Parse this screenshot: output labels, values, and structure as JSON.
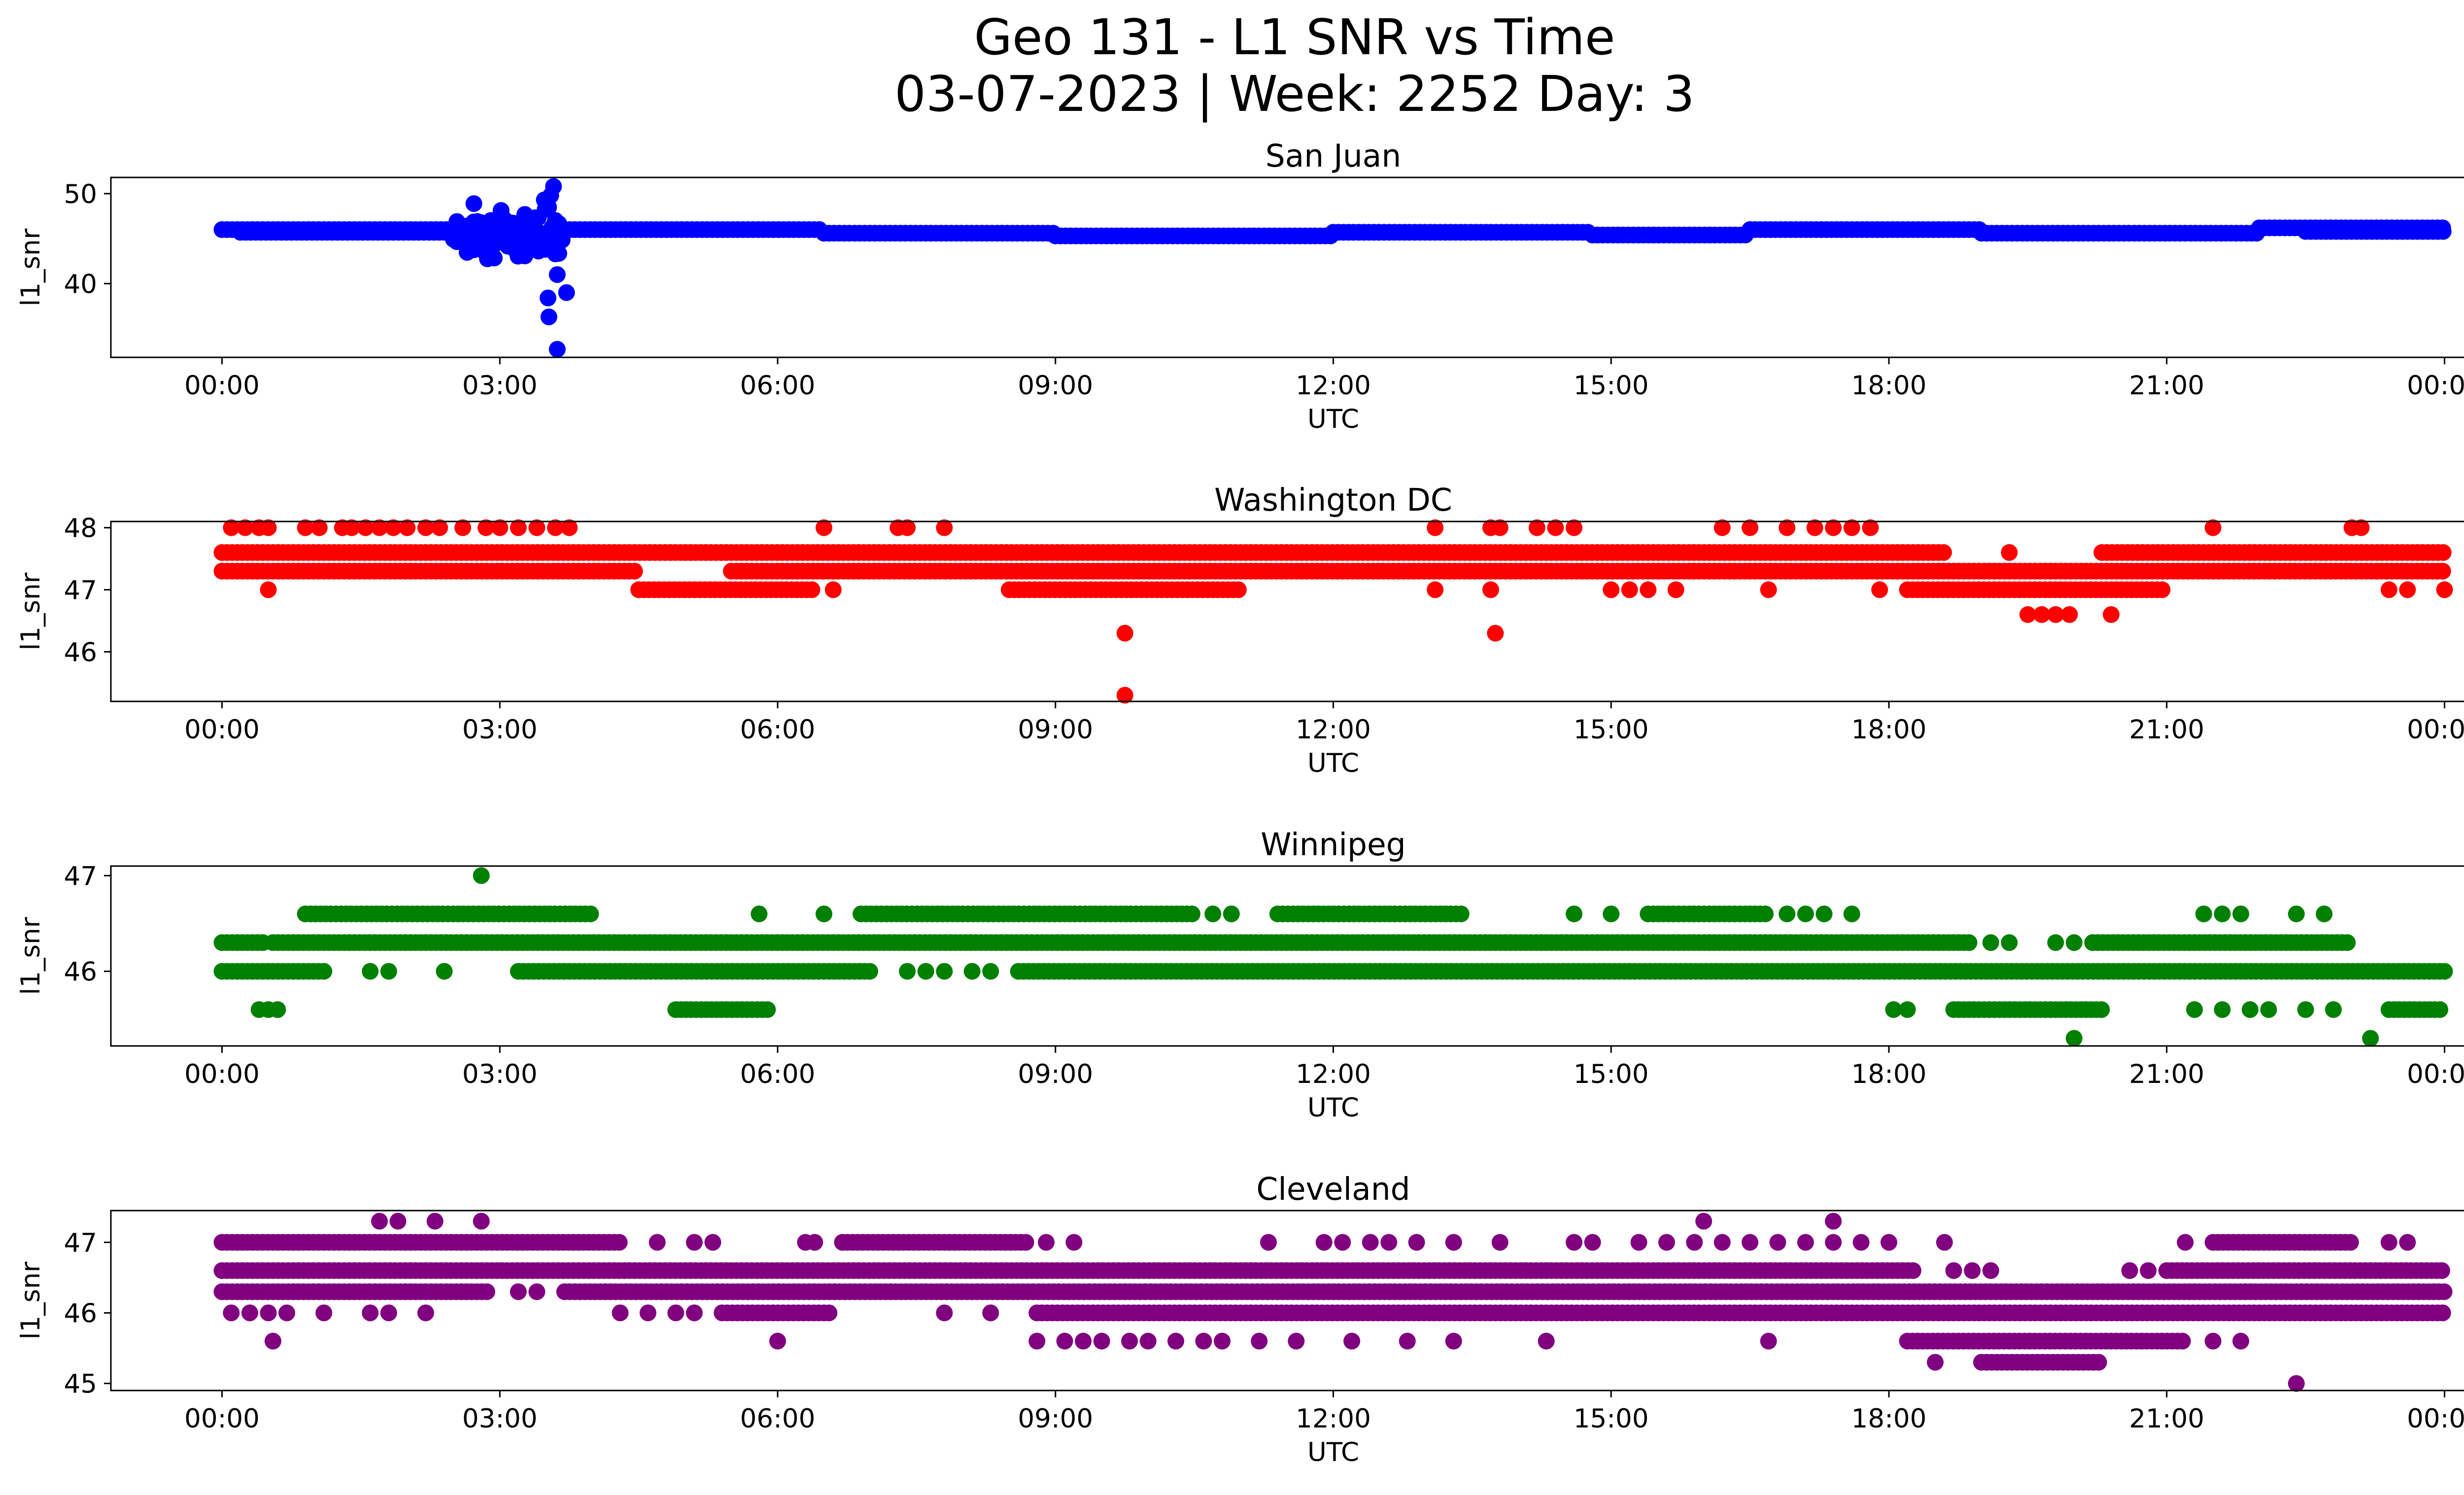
{
  "figure": {
    "title_line1": "Geo 131 - L1 SNR vs Time",
    "title_line2": "03-07-2023 | Week: 2252 Day: 3"
  },
  "chart_data": [
    {
      "type": "scatter",
      "title": "San Juan",
      "xlabel": "UTC",
      "ylabel": "l1_snr",
      "color": "#0000ff",
      "x_ticks": [
        "00:00",
        "03:00",
        "06:00",
        "09:00",
        "12:00",
        "15:00",
        "18:00",
        "21:00",
        "00:00"
      ],
      "xlim_hours": [
        -1.2,
        25.2
      ],
      "ylim": [
        31.8,
        51.8
      ],
      "y_ticks": [
        40,
        50
      ],
      "bands": [
        {
          "y": 46.0,
          "from": 0.0,
          "to": 2.5
        },
        {
          "y": 45.7,
          "from": 0.2,
          "to": 2.5
        },
        {
          "y": 46.0,
          "from": 3.7,
          "to": 6.5
        },
        {
          "y": 45.6,
          "from": 6.5,
          "to": 9.0
        },
        {
          "y": 45.3,
          "from": 9.0,
          "to": 12.0
        },
        {
          "y": 45.7,
          "from": 12.0,
          "to": 14.8
        },
        {
          "y": 45.4,
          "from": 14.8,
          "to": 16.5
        },
        {
          "y": 46.0,
          "from": 16.5,
          "to": 19.0
        },
        {
          "y": 45.6,
          "from": 19.0,
          "to": 22.0
        },
        {
          "y": 46.2,
          "from": 22.0,
          "to": 24.0
        },
        {
          "y": 45.8,
          "from": 22.5,
          "to": 24.0
        }
      ],
      "clusters": [
        {
          "from": 2.5,
          "to": 3.7,
          "ymin": 42.0,
          "ymax": 49.5
        }
      ],
      "points": [
        {
          "x": 3.58,
          "y": 50.8
        },
        {
          "x": 3.55,
          "y": 49.8
        },
        {
          "x": 3.48,
          "y": 49.3
        },
        {
          "x": 3.62,
          "y": 41.0
        },
        {
          "x": 3.72,
          "y": 39.0
        },
        {
          "x": 3.52,
          "y": 38.4
        },
        {
          "x": 3.53,
          "y": 36.3
        },
        {
          "x": 3.62,
          "y": 32.7
        }
      ]
    },
    {
      "type": "scatter",
      "title": "Washington DC",
      "xlabel": "UTC",
      "ylabel": "l1_snr",
      "color": "#ff0000",
      "x_ticks": [
        "00:00",
        "03:00",
        "06:00",
        "09:00",
        "12:00",
        "15:00",
        "18:00",
        "21:00",
        "00:00"
      ],
      "xlim_hours": [
        -1.2,
        25.2
      ],
      "ylim": [
        45.2,
        48.1
      ],
      "y_ticks": [
        46,
        47,
        48
      ],
      "bands": [
        {
          "y": 47.6,
          "from": 0.0,
          "to": 18.6
        },
        {
          "y": 47.3,
          "from": 0.0,
          "to": 4.5
        },
        {
          "y": 47.3,
          "from": 5.5,
          "to": 24.0
        },
        {
          "y": 47.0,
          "from": 4.5,
          "to": 6.4
        },
        {
          "y": 47.0,
          "from": 8.5,
          "to": 11.0
        },
        {
          "y": 47.6,
          "from": 20.3,
          "to": 24.0
        },
        {
          "y": 47.0,
          "from": 18.2,
          "to": 21.0
        }
      ],
      "clusters": [],
      "points": [
        {
          "x": 0.1,
          "y": 48.0
        },
        {
          "x": 0.25,
          "y": 48.0
        },
        {
          "x": 0.4,
          "y": 48.0
        },
        {
          "x": 0.5,
          "y": 48.0
        },
        {
          "x": 0.9,
          "y": 48.0
        },
        {
          "x": 1.05,
          "y": 48.0
        },
        {
          "x": 1.3,
          "y": 48.0
        },
        {
          "x": 1.4,
          "y": 48.0
        },
        {
          "x": 1.55,
          "y": 48.0
        },
        {
          "x": 1.7,
          "y": 48.0
        },
        {
          "x": 1.85,
          "y": 48.0
        },
        {
          "x": 2.0,
          "y": 48.0
        },
        {
          "x": 2.2,
          "y": 48.0
        },
        {
          "x": 2.35,
          "y": 48.0
        },
        {
          "x": 2.6,
          "y": 48.0
        },
        {
          "x": 2.85,
          "y": 48.0
        },
        {
          "x": 3.0,
          "y": 48.0
        },
        {
          "x": 3.2,
          "y": 48.0
        },
        {
          "x": 3.4,
          "y": 48.0
        },
        {
          "x": 3.6,
          "y": 48.0
        },
        {
          "x": 3.75,
          "y": 48.0
        },
        {
          "x": 6.5,
          "y": 48.0
        },
        {
          "x": 7.3,
          "y": 48.0
        },
        {
          "x": 7.4,
          "y": 48.0
        },
        {
          "x": 7.8,
          "y": 48.0
        },
        {
          "x": 13.1,
          "y": 48.0
        },
        {
          "x": 13.7,
          "y": 48.0
        },
        {
          "x": 13.8,
          "y": 48.0
        },
        {
          "x": 14.2,
          "y": 48.0
        },
        {
          "x": 14.4,
          "y": 48.0
        },
        {
          "x": 14.6,
          "y": 48.0
        },
        {
          "x": 16.2,
          "y": 48.0
        },
        {
          "x": 16.5,
          "y": 48.0
        },
        {
          "x": 16.9,
          "y": 48.0
        },
        {
          "x": 17.2,
          "y": 48.0
        },
        {
          "x": 17.4,
          "y": 48.0
        },
        {
          "x": 17.6,
          "y": 48.0
        },
        {
          "x": 17.8,
          "y": 48.0
        },
        {
          "x": 21.5,
          "y": 48.0
        },
        {
          "x": 23.0,
          "y": 48.0
        },
        {
          "x": 23.1,
          "y": 48.0
        },
        {
          "x": 0.5,
          "y": 47.0
        },
        {
          "x": 6.6,
          "y": 47.0
        },
        {
          "x": 13.1,
          "y": 47.0
        },
        {
          "x": 13.7,
          "y": 47.0
        },
        {
          "x": 15.0,
          "y": 47.0
        },
        {
          "x": 15.2,
          "y": 47.0
        },
        {
          "x": 15.4,
          "y": 47.0
        },
        {
          "x": 15.7,
          "y": 47.0
        },
        {
          "x": 16.7,
          "y": 47.0
        },
        {
          "x": 17.9,
          "y": 47.0
        },
        {
          "x": 23.4,
          "y": 47.0
        },
        {
          "x": 23.6,
          "y": 47.0
        },
        {
          "x": 24.0,
          "y": 47.0
        },
        {
          "x": 19.5,
          "y": 46.6
        },
        {
          "x": 19.65,
          "y": 46.6
        },
        {
          "x": 19.8,
          "y": 46.6
        },
        {
          "x": 19.95,
          "y": 46.6
        },
        {
          "x": 20.4,
          "y": 46.6
        },
        {
          "x": 19.3,
          "y": 47.6
        },
        {
          "x": 9.75,
          "y": 46.3
        },
        {
          "x": 13.75,
          "y": 46.3
        },
        {
          "x": 9.75,
          "y": 45.3
        }
      ]
    },
    {
      "type": "scatter",
      "title": "Winnipeg",
      "xlabel": "UTC",
      "ylabel": "l1_snr",
      "color": "#008000",
      "x_ticks": [
        "00:00",
        "03:00",
        "06:00",
        "09:00",
        "12:00",
        "15:00",
        "18:00",
        "21:00",
        "00:00"
      ],
      "xlim_hours": [
        -1.2,
        25.2
      ],
      "ylim": [
        45.22,
        47.1
      ],
      "y_ticks": [
        46,
        47
      ],
      "bands": [
        {
          "y": 46.3,
          "from": 0.0,
          "to": 0.45
        },
        {
          "y": 46.3,
          "from": 0.55,
          "to": 18.9
        },
        {
          "y": 46.3,
          "from": 20.2,
          "to": 23.0
        },
        {
          "y": 46.0,
          "from": 0.0,
          "to": 1.1
        },
        {
          "y": 46.0,
          "from": 3.2,
          "to": 7.0
        },
        {
          "y": 46.0,
          "from": 8.6,
          "to": 24.0
        },
        {
          "y": 46.6,
          "from": 0.9,
          "to": 4.0
        },
        {
          "y": 46.6,
          "from": 6.9,
          "to": 10.5
        },
        {
          "y": 46.6,
          "from": 11.4,
          "to": 13.4
        },
        {
          "y": 46.6,
          "from": 15.4,
          "to": 16.7
        },
        {
          "y": 45.6,
          "from": 4.9,
          "to": 5.9
        },
        {
          "y": 45.6,
          "from": 18.7,
          "to": 20.3
        },
        {
          "y": 45.6,
          "from": 23.4,
          "to": 24.0
        }
      ],
      "clusters": [],
      "points": [
        {
          "x": 2.8,
          "y": 47.0
        },
        {
          "x": 20.0,
          "y": 45.3
        },
        {
          "x": 23.2,
          "y": 45.3
        },
        {
          "x": 0.4,
          "y": 45.6
        },
        {
          "x": 0.5,
          "y": 45.6
        },
        {
          "x": 0.6,
          "y": 45.6
        },
        {
          "x": 18.05,
          "y": 45.6
        },
        {
          "x": 18.2,
          "y": 45.6
        },
        {
          "x": 21.3,
          "y": 45.6
        },
        {
          "x": 21.6,
          "y": 45.6
        },
        {
          "x": 21.9,
          "y": 45.6
        },
        {
          "x": 22.1,
          "y": 45.6
        },
        {
          "x": 22.5,
          "y": 45.6
        },
        {
          "x": 22.8,
          "y": 45.6
        },
        {
          "x": 5.8,
          "y": 46.6
        },
        {
          "x": 6.5,
          "y": 46.6
        },
        {
          "x": 10.7,
          "y": 46.6
        },
        {
          "x": 10.9,
          "y": 46.6
        },
        {
          "x": 14.6,
          "y": 46.6
        },
        {
          "x": 15.0,
          "y": 46.6
        },
        {
          "x": 16.9,
          "y": 46.6
        },
        {
          "x": 17.1,
          "y": 46.6
        },
        {
          "x": 17.3,
          "y": 46.6
        },
        {
          "x": 17.6,
          "y": 46.6
        },
        {
          "x": 21.4,
          "y": 46.6
        },
        {
          "x": 21.6,
          "y": 46.6
        },
        {
          "x": 21.8,
          "y": 46.6
        },
        {
          "x": 22.4,
          "y": 46.6
        },
        {
          "x": 22.7,
          "y": 46.6
        },
        {
          "x": 1.6,
          "y": 46.0
        },
        {
          "x": 1.8,
          "y": 46.0
        },
        {
          "x": 2.4,
          "y": 46.0
        },
        {
          "x": 7.4,
          "y": 46.0
        },
        {
          "x": 7.6,
          "y": 46.0
        },
        {
          "x": 7.8,
          "y": 46.0
        },
        {
          "x": 8.1,
          "y": 46.0
        },
        {
          "x": 8.3,
          "y": 46.0
        },
        {
          "x": 19.1,
          "y": 46.3
        },
        {
          "x": 19.3,
          "y": 46.3
        },
        {
          "x": 19.8,
          "y": 46.3
        },
        {
          "x": 20.0,
          "y": 46.3
        }
      ]
    },
    {
      "type": "scatter",
      "title": "Cleveland",
      "xlabel": "UTC",
      "ylabel": "l1_snr",
      "color": "#800080",
      "x_ticks": [
        "00:00",
        "03:00",
        "06:00",
        "09:00",
        "12:00",
        "15:00",
        "18:00",
        "21:00",
        "00:00"
      ],
      "xlim_hours": [
        -1.2,
        25.2
      ],
      "ylim": [
        44.9,
        47.45
      ],
      "y_ticks": [
        45,
        46,
        47
      ],
      "bands": [
        {
          "y": 46.6,
          "from": 0.0,
          "to": 18.3
        },
        {
          "y": 46.6,
          "from": 21.0,
          "to": 24.0
        },
        {
          "y": 46.3,
          "from": 0.0,
          "to": 2.9
        },
        {
          "y": 46.3,
          "from": 3.7,
          "to": 24.0
        },
        {
          "y": 47.0,
          "from": 0.0,
          "to": 4.3
        },
        {
          "y": 47.0,
          "from": 6.7,
          "to": 8.7
        },
        {
          "y": 47.0,
          "from": 21.5,
          "to": 23.0
        },
        {
          "y": 46.0,
          "from": 8.8,
          "to": 24.0
        },
        {
          "y": 46.0,
          "from": 5.4,
          "to": 6.6
        },
        {
          "y": 45.6,
          "from": 18.2,
          "to": 21.2
        },
        {
          "y": 45.3,
          "from": 19.0,
          "to": 20.3
        }
      ],
      "clusters": [],
      "points": [
        {
          "x": 1.7,
          "y": 47.3
        },
        {
          "x": 1.9,
          "y": 47.3
        },
        {
          "x": 2.3,
          "y": 47.3
        },
        {
          "x": 2.8,
          "y": 47.3
        },
        {
          "x": 16.0,
          "y": 47.3
        },
        {
          "x": 17.4,
          "y": 47.3
        },
        {
          "x": 22.4,
          "y": 45.0
        },
        {
          "x": 0.55,
          "y": 45.6
        },
        {
          "x": 6.0,
          "y": 45.6
        },
        {
          "x": 8.8,
          "y": 45.6
        },
        {
          "x": 9.1,
          "y": 45.6
        },
        {
          "x": 9.3,
          "y": 45.6
        },
        {
          "x": 9.5,
          "y": 45.6
        },
        {
          "x": 9.8,
          "y": 45.6
        },
        {
          "x": 10.0,
          "y": 45.6
        },
        {
          "x": 10.3,
          "y": 45.6
        },
        {
          "x": 10.6,
          "y": 45.6
        },
        {
          "x": 10.8,
          "y": 45.6
        },
        {
          "x": 11.2,
          "y": 45.6
        },
        {
          "x": 11.6,
          "y": 45.6
        },
        {
          "x": 12.2,
          "y": 45.6
        },
        {
          "x": 12.8,
          "y": 45.6
        },
        {
          "x": 13.3,
          "y": 45.6
        },
        {
          "x": 14.3,
          "y": 45.6
        },
        {
          "x": 16.7,
          "y": 45.6
        },
        {
          "x": 21.5,
          "y": 45.6
        },
        {
          "x": 21.8,
          "y": 45.6
        },
        {
          "x": 18.5,
          "y": 45.3
        },
        {
          "x": 0.1,
          "y": 46.0
        },
        {
          "x": 0.3,
          "y": 46.0
        },
        {
          "x": 0.5,
          "y": 46.0
        },
        {
          "x": 0.7,
          "y": 46.0
        },
        {
          "x": 1.1,
          "y": 46.0
        },
        {
          "x": 1.6,
          "y": 46.0
        },
        {
          "x": 1.8,
          "y": 46.0
        },
        {
          "x": 2.2,
          "y": 46.0
        },
        {
          "x": 4.3,
          "y": 46.0
        },
        {
          "x": 4.6,
          "y": 46.0
        },
        {
          "x": 4.9,
          "y": 46.0
        },
        {
          "x": 5.1,
          "y": 46.0
        },
        {
          "x": 7.8,
          "y": 46.0
        },
        {
          "x": 8.3,
          "y": 46.0
        },
        {
          "x": 4.7,
          "y": 47.0
        },
        {
          "x": 5.1,
          "y": 47.0
        },
        {
          "x": 5.3,
          "y": 47.0
        },
        {
          "x": 6.3,
          "y": 47.0
        },
        {
          "x": 6.4,
          "y": 47.0
        },
        {
          "x": 8.9,
          "y": 47.0
        },
        {
          "x": 9.2,
          "y": 47.0
        },
        {
          "x": 11.3,
          "y": 47.0
        },
        {
          "x": 11.9,
          "y": 47.0
        },
        {
          "x": 12.1,
          "y": 47.0
        },
        {
          "x": 12.4,
          "y": 47.0
        },
        {
          "x": 12.6,
          "y": 47.0
        },
        {
          "x": 12.9,
          "y": 47.0
        },
        {
          "x": 13.3,
          "y": 47.0
        },
        {
          "x": 13.8,
          "y": 47.0
        },
        {
          "x": 14.6,
          "y": 47.0
        },
        {
          "x": 14.8,
          "y": 47.0
        },
        {
          "x": 15.3,
          "y": 47.0
        },
        {
          "x": 15.6,
          "y": 47.0
        },
        {
          "x": 15.9,
          "y": 47.0
        },
        {
          "x": 16.2,
          "y": 47.0
        },
        {
          "x": 16.5,
          "y": 47.0
        },
        {
          "x": 16.8,
          "y": 47.0
        },
        {
          "x": 17.1,
          "y": 47.0
        },
        {
          "x": 17.4,
          "y": 47.0
        },
        {
          "x": 17.7,
          "y": 47.0
        },
        {
          "x": 18.0,
          "y": 47.0
        },
        {
          "x": 18.6,
          "y": 47.0
        },
        {
          "x": 21.2,
          "y": 47.0
        },
        {
          "x": 23.4,
          "y": 47.0
        },
        {
          "x": 23.6,
          "y": 47.0
        },
        {
          "x": 3.2,
          "y": 46.3
        },
        {
          "x": 3.4,
          "y": 46.3
        },
        {
          "x": 18.7,
          "y": 46.6
        },
        {
          "x": 18.9,
          "y": 46.6
        },
        {
          "x": 19.1,
          "y": 46.6
        },
        {
          "x": 20.6,
          "y": 46.6
        },
        {
          "x": 20.8,
          "y": 46.6
        }
      ]
    }
  ]
}
